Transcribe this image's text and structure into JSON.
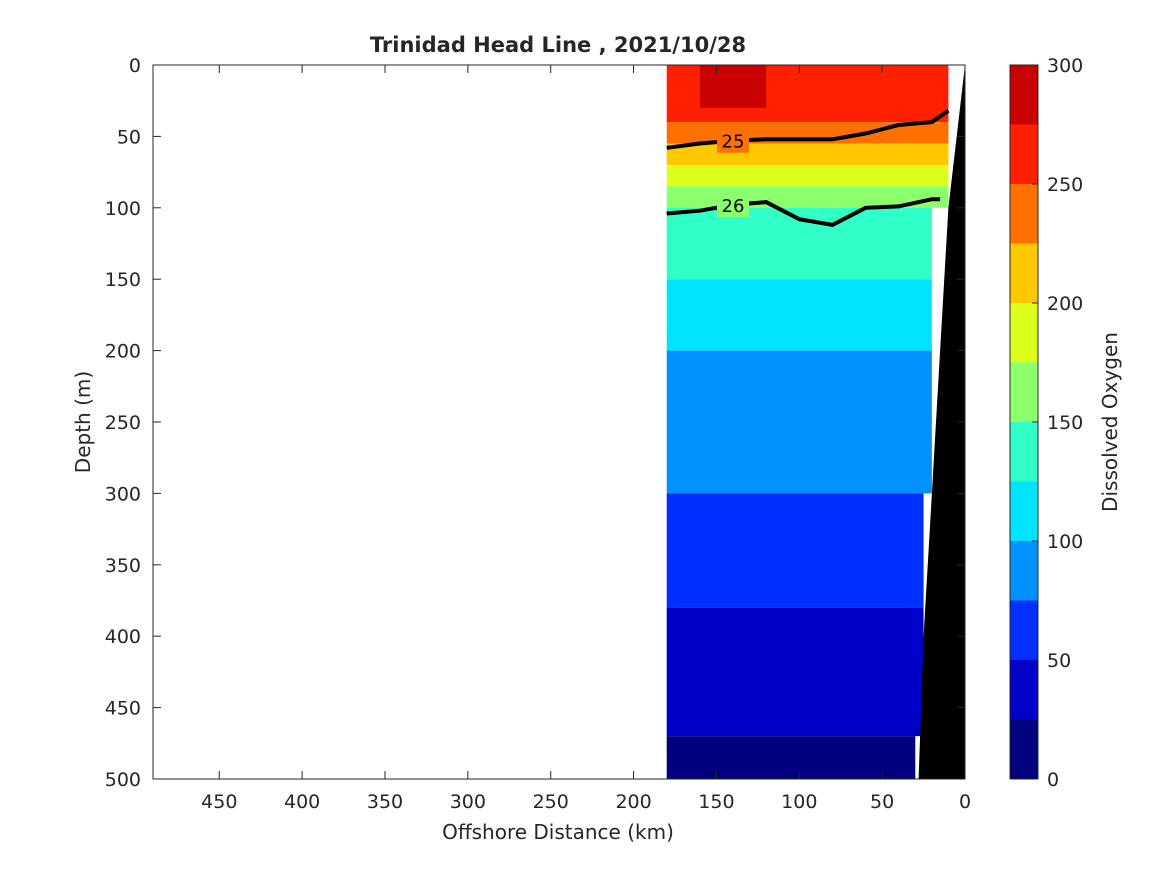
{
  "chart_data": {
    "type": "heatmap",
    "title": "Trinidad Head Line , 2021/10/28",
    "xlabel": "Offshore Distance (km)",
    "ylabel": "Depth (m)",
    "xlim": [
      490,
      0
    ],
    "ylim": [
      0,
      500
    ],
    "x_reversed": true,
    "y_reversed": true,
    "xticks": [
      450,
      400,
      350,
      300,
      250,
      200,
      150,
      100,
      50,
      0
    ],
    "yticks": [
      0,
      50,
      100,
      150,
      200,
      250,
      300,
      350,
      400,
      450,
      500
    ],
    "colorbar": {
      "label": "Dissolved Oxygen",
      "ticks": [
        0,
        50,
        100,
        150,
        200,
        250,
        300
      ],
      "levels": [
        0,
        25,
        50,
        75,
        100,
        125,
        150,
        175,
        200,
        225,
        250,
        275,
        300
      ],
      "colors": [
        "#00007f",
        "#0000c8",
        "#0030ff",
        "#0090ff",
        "#00e4ff",
        "#30ffc8",
        "#8cff6c",
        "#dcff1c",
        "#ffc800",
        "#ff7000",
        "#ff2000",
        "#c80000"
      ]
    },
    "section_x_range_km": [
      180,
      0
    ],
    "bathymetry_km_at_depth": [
      [
        0,
        0
      ],
      [
        100,
        10
      ],
      [
        200,
        15
      ],
      [
        300,
        20
      ],
      [
        400,
        25
      ],
      [
        500,
        28
      ]
    ],
    "oxygen_layers": [
      {
        "level": "250-275",
        "depth_range_m": [
          0,
          40
        ],
        "x_range_km": [
          180,
          10
        ]
      },
      {
        "level": "275-300",
        "depth_range_m": [
          0,
          30
        ],
        "x_range_km": [
          160,
          120
        ]
      },
      {
        "level": "225-250",
        "depth_range_m": [
          40,
          55
        ],
        "x_range_km": [
          180,
          10
        ]
      },
      {
        "level": "200-225",
        "depth_range_m": [
          55,
          70
        ],
        "x_range_km": [
          180,
          10
        ]
      },
      {
        "level": "175-200",
        "depth_range_m": [
          70,
          85
        ],
        "x_range_km": [
          180,
          10
        ]
      },
      {
        "level": "150-175",
        "depth_range_m": [
          85,
          100
        ],
        "x_range_km": [
          180,
          10
        ]
      },
      {
        "level": "125-150",
        "depth_range_m": [
          100,
          150
        ],
        "x_range_km": [
          180,
          20
        ]
      },
      {
        "level": "100-125",
        "depth_range_m": [
          150,
          200
        ],
        "x_range_km": [
          180,
          20
        ]
      },
      {
        "level": "75-100",
        "depth_range_m": [
          200,
          300
        ],
        "x_range_km": [
          180,
          20
        ]
      },
      {
        "level": "50-75",
        "depth_range_m": [
          300,
          380
        ],
        "x_range_km": [
          180,
          25
        ]
      },
      {
        "level": "25-50",
        "depth_range_m": [
          380,
          470
        ],
        "x_range_km": [
          180,
          25
        ]
      },
      {
        "level": "0-25",
        "depth_range_m": [
          470,
          500
        ],
        "x_range_km": [
          180,
          30
        ]
      }
    ],
    "density_contours": [
      {
        "label": "25",
        "bold": true,
        "points": [
          [
            180,
            58
          ],
          [
            160,
            55
          ],
          [
            140,
            53
          ],
          [
            120,
            52
          ],
          [
            100,
            52
          ],
          [
            80,
            52
          ],
          [
            60,
            48
          ],
          [
            40,
            42
          ],
          [
            20,
            40
          ],
          [
            10,
            32
          ]
        ]
      },
      {
        "label": "26",
        "bold": true,
        "points": [
          [
            180,
            104
          ],
          [
            160,
            102
          ],
          [
            140,
            98
          ],
          [
            120,
            96
          ],
          [
            100,
            108
          ],
          [
            80,
            112
          ],
          [
            60,
            100
          ],
          [
            40,
            99
          ],
          [
            20,
            94
          ],
          [
            15,
            94
          ]
        ]
      }
    ],
    "contour_labels": [
      "25",
      "26"
    ]
  }
}
